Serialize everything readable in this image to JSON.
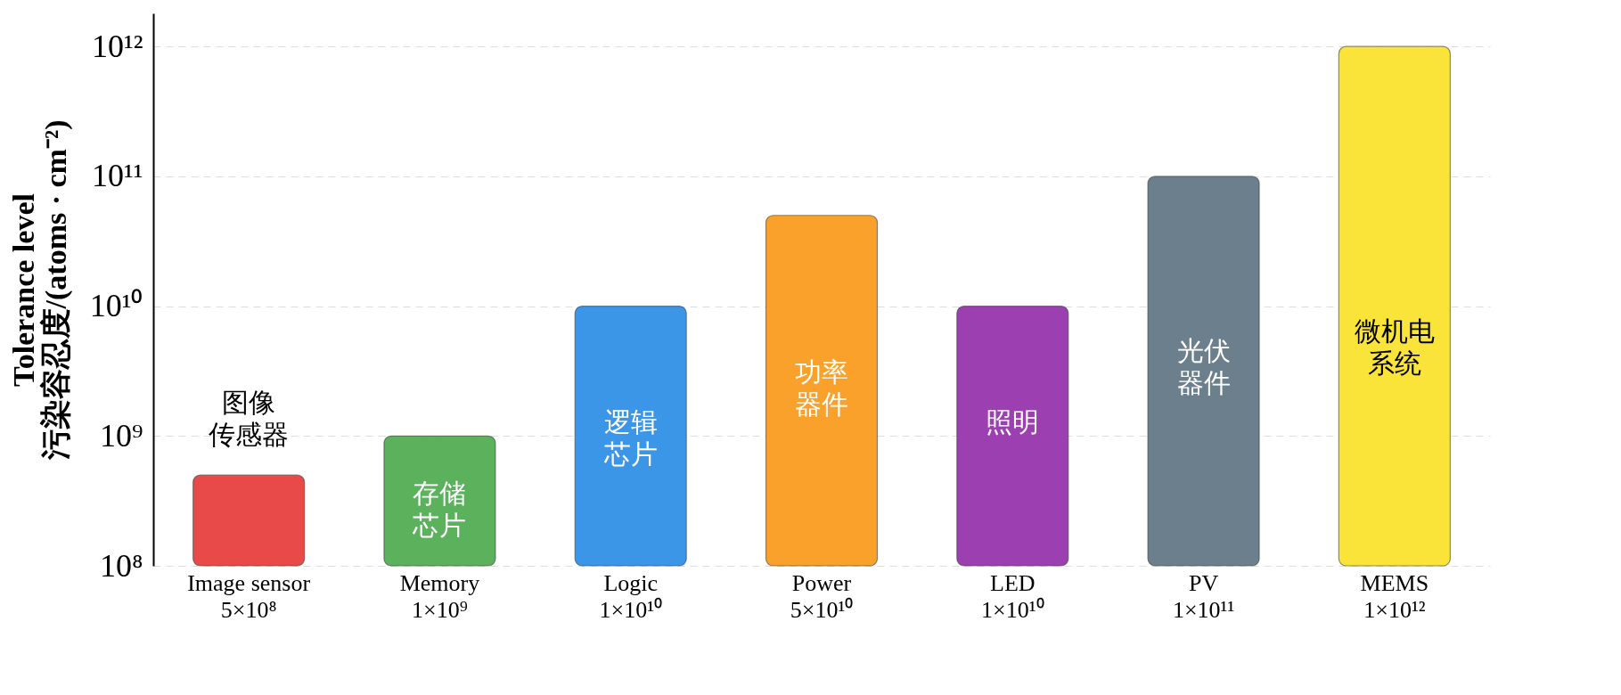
{
  "chart_data": {
    "type": "bar",
    "categories": [
      "Image sensor",
      "Memory",
      "Logic",
      "Power",
      "LED",
      "PV",
      "MEMS"
    ],
    "values": [
      500000000.0,
      1000000000.0,
      10000000000.0,
      50000000000.0,
      10000000000.0,
      100000000000.0,
      1000000000000.0
    ],
    "value_labels": [
      "5×10⁸",
      "1×10⁹",
      "1×10¹⁰",
      "5×10¹⁰",
      "1×10¹⁰",
      "1×10¹¹",
      "1×10¹²"
    ],
    "colors": [
      "#e84a4a",
      "#5cb15c",
      "#3b96e8",
      "#f9a12a",
      "#9c3fb1",
      "#6b7f8c",
      "#fbe43a"
    ],
    "ylabel": "Tolerance level\n污染容忍度/(atoms · cm⁻²)",
    "log": "y",
    "ylim": [
      100000000.0,
      1800000000000.0
    ],
    "yticks": [
      {
        "value": 100000000.0,
        "label": "10⁸"
      },
      {
        "value": 1000000000.0,
        "label": "10⁹"
      },
      {
        "value": 10000000000.0,
        "label": "10¹⁰"
      },
      {
        "value": 100000000000.0,
        "label": "10¹¹"
      },
      {
        "value": 1000000000000.0,
        "label": "10¹²"
      }
    ],
    "grid": "y",
    "annotations": [
      "图像传感器",
      "存储芯片",
      "逻辑芯片",
      "功率器件",
      "照明",
      "光伏器件",
      "微机电系统"
    ]
  }
}
